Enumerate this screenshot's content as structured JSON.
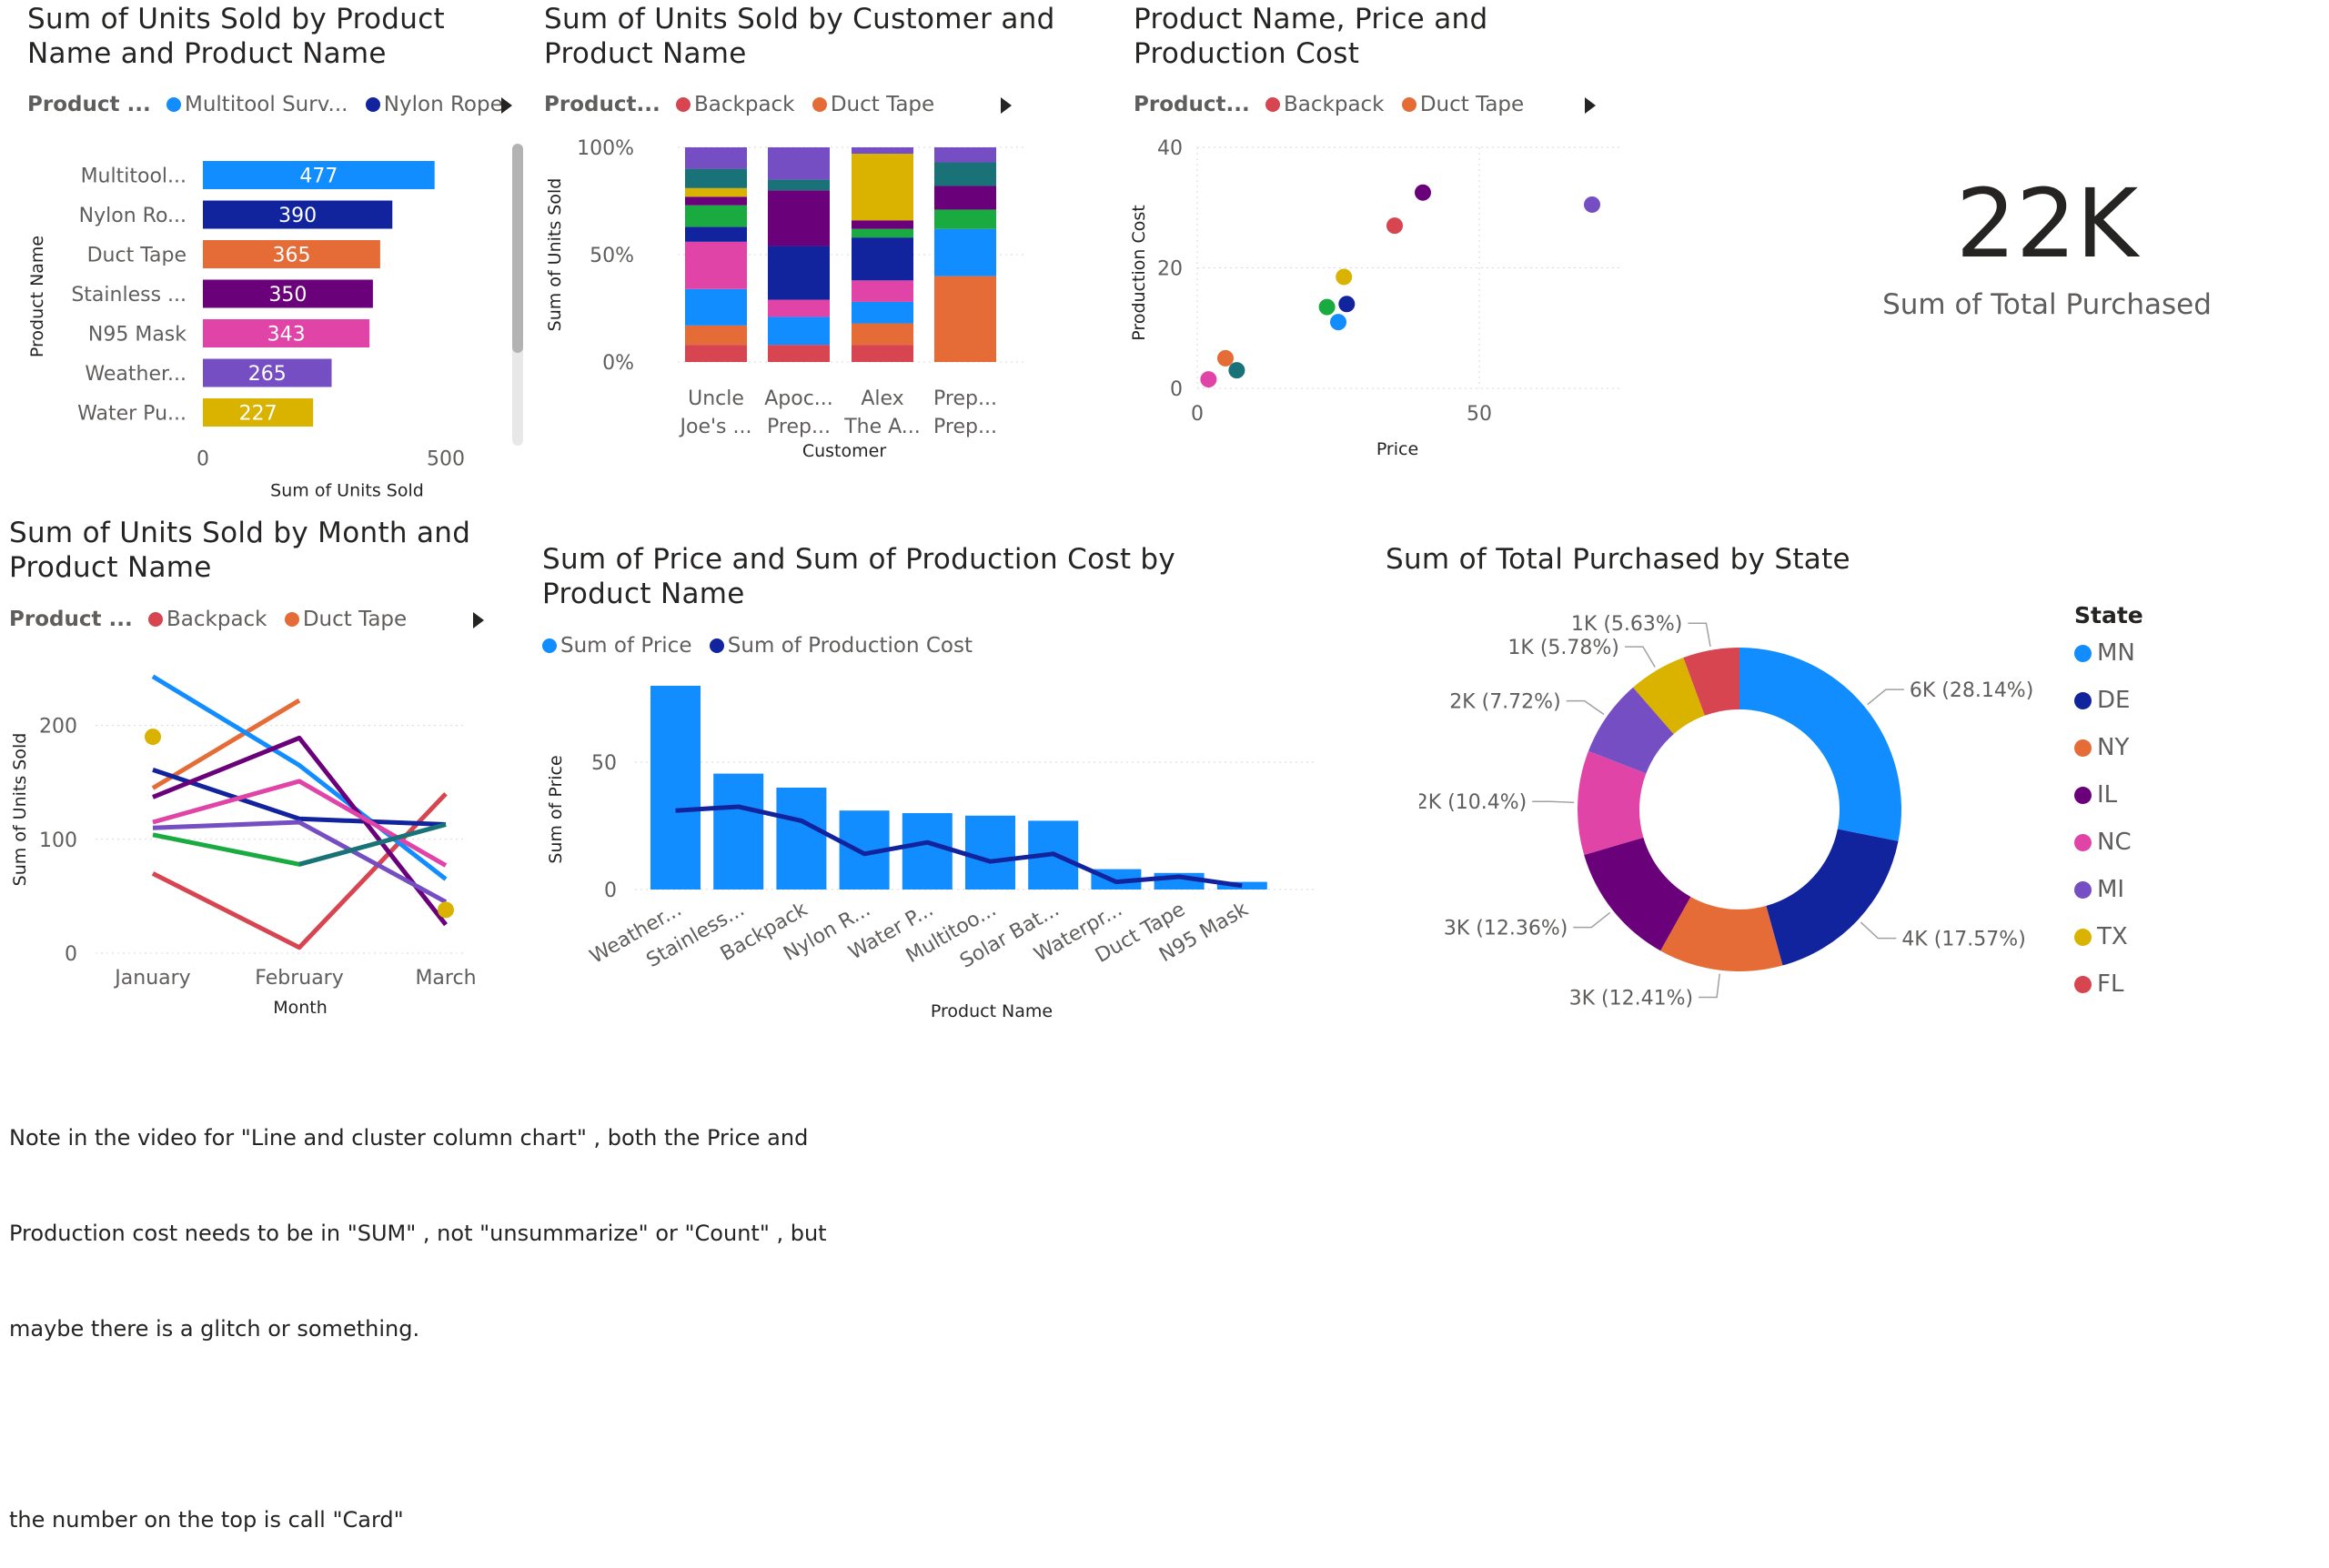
{
  "chart_data": [
    {
      "id": "bar",
      "type": "bar",
      "orientation": "horizontal",
      "title": "Sum of Units Sold by Product Name and Product Name",
      "legend": {
        "label": "Product ...",
        "items": [
          "Multitool Surv...",
          "Nylon Rope"
        ]
      },
      "categories": [
        "Multitool...",
        "Nylon Ro...",
        "Duct Tape",
        "Stainless ...",
        "N95 Mask",
        "Weather...",
        "Water Pu..."
      ],
      "values": [
        477,
        390,
        365,
        350,
        343,
        265,
        227
      ],
      "colors": [
        "#118DFF",
        "#12239E",
        "#E66C37",
        "#6B007B",
        "#E044A7",
        "#744EC2",
        "#D9B300"
      ],
      "xlabel": "Sum of Units Sold",
      "ylabel": "Product Name",
      "xlim": [
        0,
        500
      ],
      "xticks": [
        "0",
        "500"
      ]
    },
    {
      "id": "stacked",
      "type": "bar",
      "stacked": "100%",
      "title": "Sum of Units Sold by Customer and Product Name",
      "legend": {
        "label": "Product...",
        "items": [
          "Backpack",
          "Duct Tape"
        ]
      },
      "categories": [
        [
          "Uncle",
          "Joe's ..."
        ],
        [
          "Apoc...",
          "Prep..."
        ],
        [
          "Alex",
          "The A..."
        ],
        [
          "Prep...",
          "Prep..."
        ]
      ],
      "xlabel": "Customer",
      "ylabel": "Sum of Units Sold",
      "yticks": [
        "100%",
        "50%",
        "0%"
      ],
      "series_colors": [
        "#D64550",
        "#E66C37",
        "#118DFF",
        "#E044A7",
        "#12239E",
        "#1AAB40",
        "#6B007B",
        "#D9B300",
        "#197278",
        "#744EC2"
      ],
      "stacks": [
        [
          0.08,
          0.09,
          0.17,
          0.22,
          0.07,
          0.1,
          0.04,
          0.04,
          0.09,
          0.1
        ],
        [
          0.08,
          0.0,
          0.13,
          0.08,
          0.25,
          0.0,
          0.26,
          0.0,
          0.05,
          0.15
        ],
        [
          0.08,
          0.1,
          0.1,
          0.1,
          0.2,
          0.04,
          0.04,
          0.31,
          0.0,
          0.03
        ],
        [
          0.0,
          0.4,
          0.22,
          0.0,
          0.0,
          0.09,
          0.11,
          0.0,
          0.11,
          0.07
        ]
      ]
    },
    {
      "id": "scatter",
      "type": "scatter",
      "title": "Product Name, Price and Production Cost",
      "legend": {
        "label": "Product...",
        "items": [
          "Backpack",
          "Duct Tape"
        ]
      },
      "xlabel": "Price",
      "ylabel": "Production Cost",
      "xlim": [
        0,
        70
      ],
      "ylim": [
        0,
        40
      ],
      "xticks": [
        0,
        50
      ],
      "yticks": [
        0,
        20,
        40
      ],
      "points": [
        {
          "x": 2,
          "y": 1.5,
          "color": "#E044A7"
        },
        {
          "x": 5,
          "y": 5,
          "color": "#E66C37"
        },
        {
          "x": 7,
          "y": 3,
          "color": "#197278"
        },
        {
          "x": 23,
          "y": 13.5,
          "color": "#1AAB40"
        },
        {
          "x": 25,
          "y": 11,
          "color": "#118DFF"
        },
        {
          "x": 26,
          "y": 18.5,
          "color": "#D9B300"
        },
        {
          "x": 26.5,
          "y": 14,
          "color": "#12239E"
        },
        {
          "x": 35,
          "y": 27,
          "color": "#D64550"
        },
        {
          "x": 40,
          "y": 32.5,
          "color": "#6B007B"
        },
        {
          "x": 70,
          "y": 30.5,
          "color": "#744EC2"
        }
      ]
    },
    {
      "id": "line",
      "type": "line",
      "title": "Sum of Units Sold by Month and Product Name",
      "legend": {
        "label": "Product ...",
        "items": [
          "Backpack",
          "Duct Tape"
        ]
      },
      "categories": [
        "January",
        "February",
        "March"
      ],
      "xlabel": "Month",
      "ylabel": "Sum of Units Sold",
      "ylim": [
        0,
        250
      ],
      "yticks": [
        0,
        100,
        200
      ],
      "series": [
        {
          "color": "#D64550",
          "values": [
            70,
            5,
            140
          ]
        },
        {
          "color": "#E66C37",
          "values": [
            145,
            222,
            null
          ]
        },
        {
          "color": "#118DFF",
          "values": [
            243,
            165,
            65
          ]
        },
        {
          "color": "#12239E",
          "values": [
            161,
            118,
            113
          ]
        },
        {
          "color": "#6B007B",
          "values": [
            137,
            189,
            25
          ]
        },
        {
          "color": "#E044A7",
          "values": [
            115,
            151,
            77
          ]
        },
        {
          "color": "#744EC2",
          "values": [
            110,
            115,
            45
          ]
        },
        {
          "color": "#1AAB40",
          "values": [
            104,
            78,
            113
          ]
        },
        {
          "color": "#197278",
          "values": [
            null,
            78,
            113
          ]
        },
        {
          "color": "#D9B300",
          "values": [
            190,
            null,
            38
          ],
          "markers": true
        }
      ]
    },
    {
      "id": "combo",
      "type": "bar",
      "combo_line": true,
      "title": "Sum of Price and Sum of Production Cost by Product Name",
      "legend": {
        "items": [
          "Sum of Price",
          "Sum of Production Cost"
        ]
      },
      "categories": [
        "Weather...",
        "Stainless...",
        "Backpack",
        "Nylon R...",
        "Water P...",
        "Multitoo...",
        "Solar Bat...",
        "Waterpr...",
        "Duct Tape",
        "N95 Mask"
      ],
      "series": [
        {
          "name": "Sum of Price",
          "type": "bar",
          "color": "#118DFF",
          "values": [
            80,
            45.5,
            40,
            31,
            30,
            29,
            27,
            8,
            6.5,
            3
          ]
        },
        {
          "name": "Sum of Production Cost",
          "type": "line",
          "color": "#12239E",
          "values": [
            31,
            32.5,
            27,
            14,
            18.5,
            11,
            14,
            3,
            5,
            1.5
          ]
        }
      ],
      "xlabel": "Product Name",
      "ylabel": "Sum of Price",
      "ylim": [
        0,
        85
      ],
      "yticks": [
        0,
        50
      ]
    },
    {
      "id": "donut",
      "type": "pie",
      "donut": true,
      "title": "Sum of Total Purchased by State",
      "legend_title": "State",
      "slices": [
        {
          "label": "MN",
          "value": 28.14,
          "text": "6K (28.14%)",
          "color": "#118DFF"
        },
        {
          "label": "DE",
          "value": 17.57,
          "text": "4K (17.57%)",
          "color": "#12239E"
        },
        {
          "label": "NY",
          "value": 12.41,
          "text": "3K (12.41%)",
          "color": "#E66C37"
        },
        {
          "label": "IL",
          "value": 12.36,
          "text": "3K (12.36%)",
          "color": "#6B007B"
        },
        {
          "label": "NC",
          "value": 10.4,
          "text": "2K (10.4%)",
          "color": "#E044A7"
        },
        {
          "label": "MI",
          "value": 7.72,
          "text": "2K (7.72%)",
          "color": "#744EC2"
        },
        {
          "label": "TX",
          "value": 5.78,
          "text": "1K (5.78%)",
          "color": "#D9B300"
        },
        {
          "label": "FL",
          "value": 5.63,
          "text": "1K (5.63%)",
          "color": "#D64550"
        }
      ]
    }
  ],
  "card": {
    "value": "22K",
    "label": "Sum of Total Purchased"
  },
  "note": {
    "line1": "Note in the video for \"Line and cluster column chart\" , both the Price and",
    "line2": "Production cost needs to be in \"SUM\" , not \"unsummarize\" or \"Count\" , but",
    "line3": "maybe there is a glitch or something.",
    "line4": "the number on the top is call \"Card\""
  },
  "colors": {
    "multitool": "#118DFF",
    "nylon": "#12239E",
    "backpack": "#D64550",
    "duct_tape": "#E66C37"
  }
}
